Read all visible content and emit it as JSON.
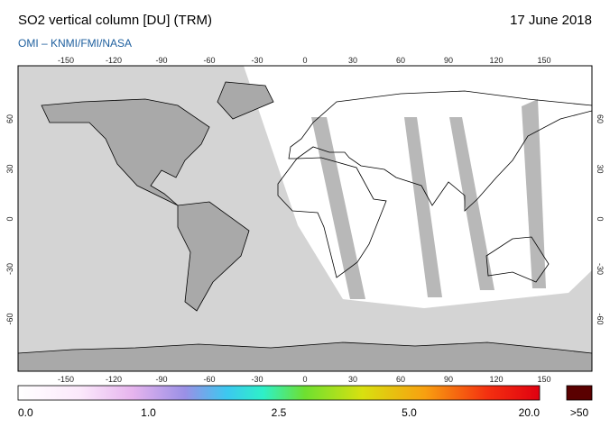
{
  "header": {
    "title": "SO2 vertical column [DU] (TRM)",
    "date": "17 June 2018",
    "source": "OMI  –  KNMI/FMI/NASA"
  },
  "map": {
    "lon_ticks": [
      -150,
      -120,
      -90,
      -60,
      -30,
      0,
      30,
      60,
      90,
      120,
      150
    ],
    "lat_ticks": [
      60,
      30,
      0,
      -30,
      -60
    ]
  },
  "colorbar": {
    "labels": [
      "0.0",
      "1.0",
      "2.5",
      "5.0",
      "20.0"
    ],
    "overflow": ">50"
  }
}
